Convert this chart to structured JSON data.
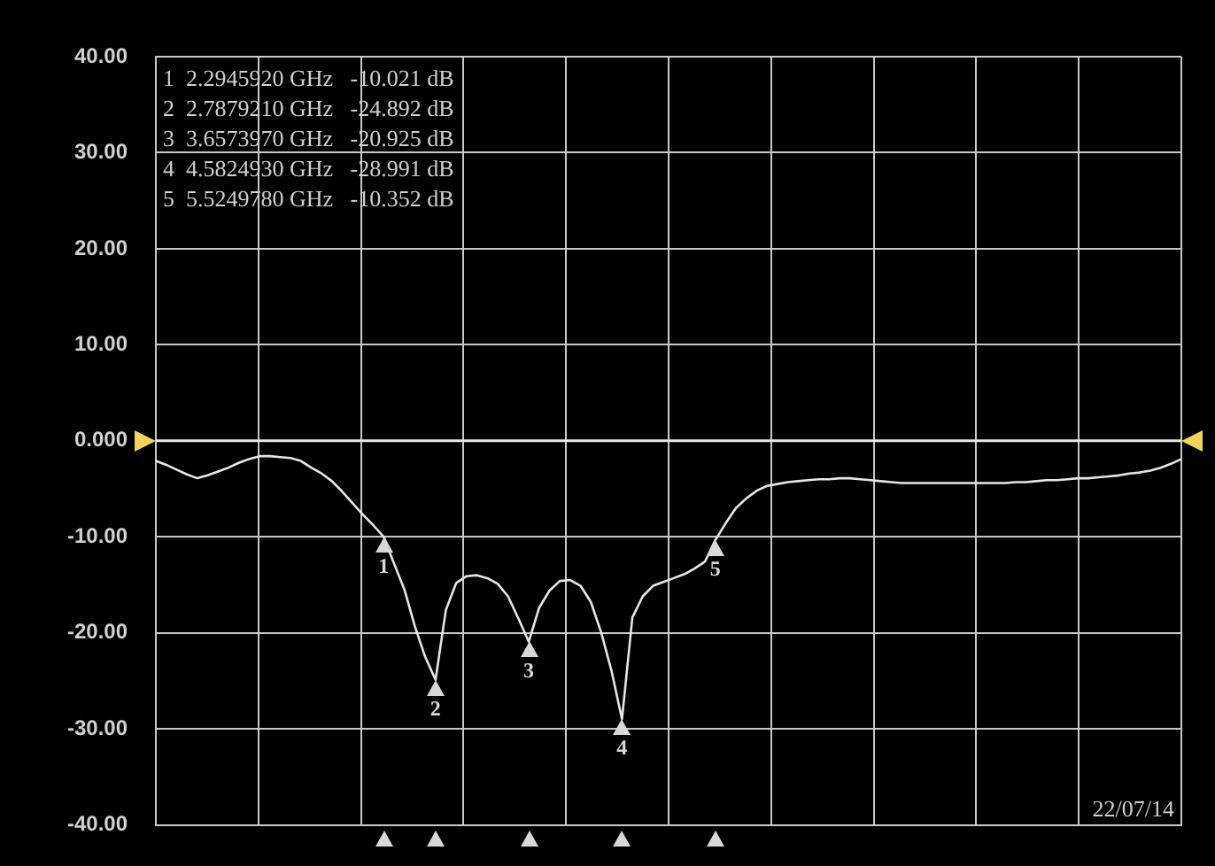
{
  "chart_data": {
    "type": "line",
    "tick_labels": "y",
    "grid": true,
    "legend": false,
    "marker": "none",
    "line_style": "solid",
    "categories": [
      null,
      null,
      null,
      null,
      null,
      null,
      null,
      null,
      null,
      null,
      null,
      null,
      null,
      null,
      null,
      null,
      null,
      null,
      null,
      null,
      null,
      null,
      null,
      null,
      null,
      null,
      null,
      null,
      null,
      null,
      null,
      null,
      null,
      null,
      null,
      null,
      null,
      null,
      null,
      null,
      null,
      null,
      null,
      null,
      null,
      null,
      null,
      null,
      null,
      null,
      null,
      null,
      null,
      null,
      null,
      null,
      null,
      null,
      null,
      null,
      null,
      null,
      null,
      null,
      null,
      null,
      null,
      null,
      null,
      null,
      null,
      null,
      null,
      null,
      null,
      null,
      null,
      null,
      null,
      null,
      null,
      null,
      null,
      null,
      null,
      null,
      null,
      null,
      null,
      null,
      null,
      null,
      null,
      null,
      null,
      null,
      null,
      null,
      null,
      null
    ],
    "ylim": [
      -40,
      40
    ],
    "yticks": [
      {
        "value": -40,
        "label": "-40.00"
      },
      {
        "value": -30,
        "label": "-30.00"
      },
      {
        "value": -20,
        "label": "-20.00"
      },
      {
        "value": -10,
        "label": "-10.00"
      },
      {
        "value": 0,
        "label": "0.000"
      },
      {
        "value": 10,
        "label": "10.00"
      },
      {
        "value": 20,
        "label": "20.00"
      },
      {
        "value": 30,
        "label": "30.00"
      },
      {
        "value": 40,
        "label": "40.00"
      }
    ],
    "ref_lines": [
      {
        "axis": "y",
        "value": 0,
        "color": "#e8e8e8"
      }
    ],
    "series": [
      {
        "color": "#e6e6e6",
        "values": [
          -2.1,
          -2.5,
          -3.0,
          -3.5,
          -3.9,
          -3.6,
          -3.2,
          -2.8,
          -2.3,
          -1.9,
          -1.6,
          -1.6,
          -1.7,
          -1.8,
          -2.1,
          -2.8,
          -3.4,
          -4.2,
          -5.3,
          -6.5,
          -7.7,
          -8.8,
          -10.021,
          -12.8,
          -15.5,
          -19.3,
          -22.5,
          -24.892,
          -17.6,
          -14.8,
          -14.1,
          -14.0,
          -14.3,
          -14.9,
          -16.2,
          -18.5,
          -20.925,
          -17.4,
          -15.6,
          -14.6,
          -14.5,
          -15.1,
          -16.8,
          -20,
          -24,
          -28.991,
          -18.4,
          -16.2,
          -15.1,
          -14.7,
          -14.3,
          -13.9,
          -13.3,
          -12.6,
          -10.352,
          -8.6,
          -7.0,
          -6.0,
          -5.2,
          -4.7,
          -4.5,
          -4.3,
          -4.2,
          -4.1,
          -4.0,
          -4.0,
          -3.9,
          -3.9,
          -4.0,
          -4.1,
          -4.2,
          -4.3,
          -4.4,
          -4.4,
          -4.4,
          -4.4,
          -4.4,
          -4.4,
          -4.4,
          -4.4,
          -4.4,
          -4.4,
          -4.4,
          -4.3,
          -4.3,
          -4.2,
          -4.1,
          -4.1,
          -4.0,
          -3.9,
          -3.9,
          -3.8,
          -3.7,
          -3.6,
          -3.4,
          -3.3,
          -3.1,
          -2.8,
          -2.4,
          -1.9
        ]
      }
    ],
    "annotations": [
      "1  2.2945920 GHz   -10.021 dB",
      "2  2.7879210 GHz   -24.892 dB",
      "3  3.6573970 GHz   -20.925 dB",
      "4  4.5824930 GHz   -28.991 dB",
      "5  5.5249780 GHz   -10.352 dB",
      {
        "text": "1",
        "y": -10.021
      },
      {
        "text": "2",
        "y": -24.892
      },
      {
        "text": "3",
        "y": -20.925
      },
      {
        "text": "4",
        "y": -28.991
      },
      {
        "text": "5",
        "y": -10.352
      },
      "22/07/14"
    ]
  }
}
